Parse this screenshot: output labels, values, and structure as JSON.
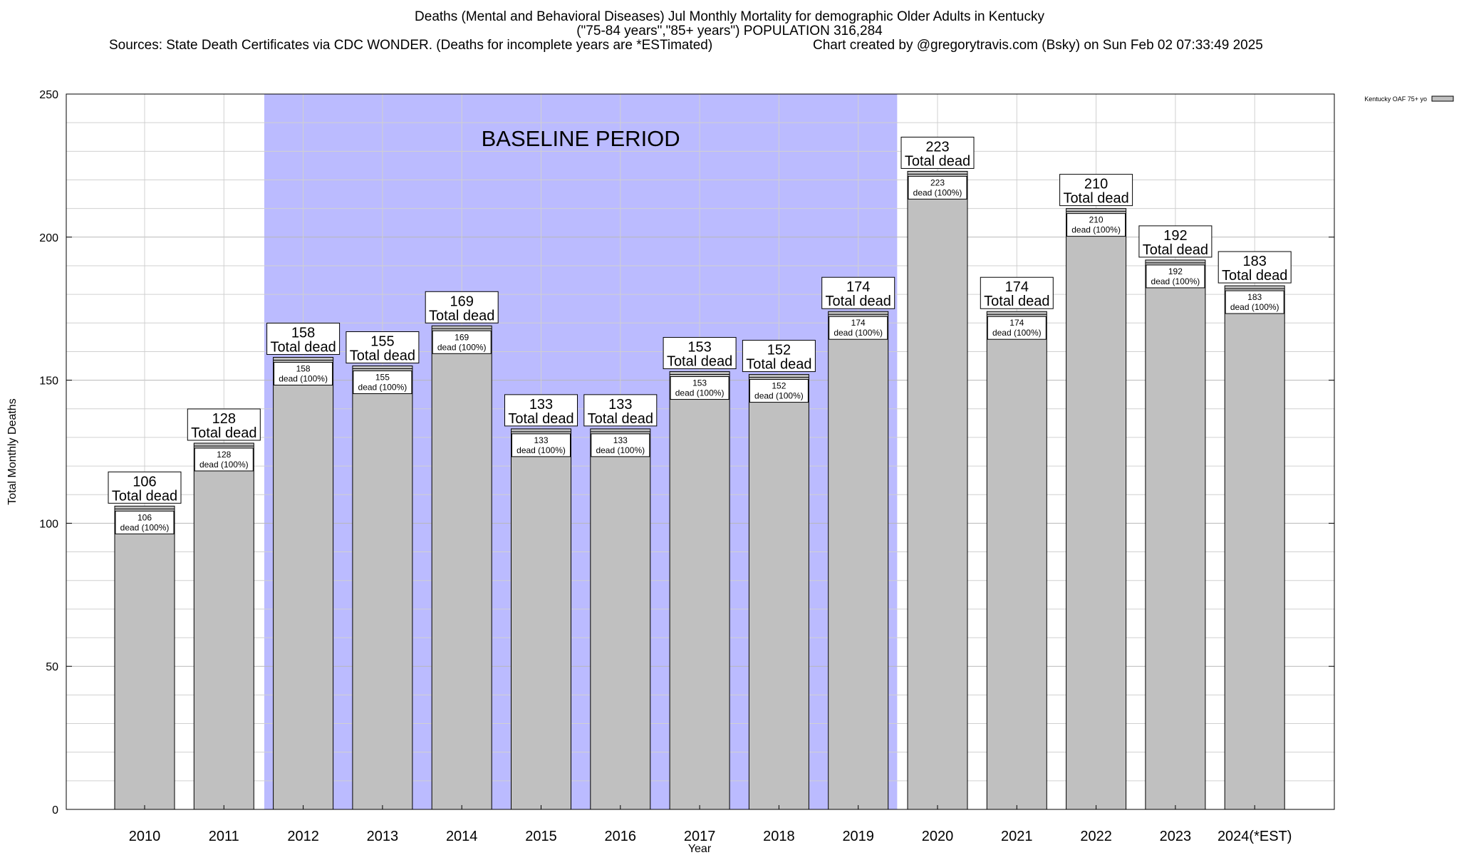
{
  "header": {
    "title": "Deaths (Mental and Behavioral Diseases) Jul Monthly Mortality for demographic Older Adults in Kentucky",
    "subtitle": "(\"75-84 years\",\"85+ years\") POPULATION 316,284",
    "sources": "Sources: State Death Certificates via CDC WONDER. (Deaths for incomplete years are *ESTimated)",
    "credit": "Chart created by @gregorytravis.com (Bsky) on Sun Feb 02 07:33:49 2025"
  },
  "chart_data": {
    "type": "bar",
    "title": "Deaths (Mental and Behavioral Diseases) Jul Monthly Mortality for demographic Older Adults in Kentucky",
    "xlabel": "Year",
    "ylabel": "Total Monthly Deaths",
    "ylim": [
      0,
      250
    ],
    "yticks": [
      0,
      50,
      100,
      150,
      200,
      250
    ],
    "grid": true,
    "legend_position": "top-right",
    "categories": [
      "2010",
      "2011",
      "2012",
      "2013",
      "2014",
      "2015",
      "2016",
      "2017",
      "2018",
      "2019",
      "2020",
      "2021",
      "2022",
      "2023",
      "2024(*EST)"
    ],
    "series": [
      {
        "name": "Kentucky OAF 75+ yo",
        "values": [
          106,
          128,
          158,
          155,
          169,
          133,
          133,
          153,
          152,
          174,
          223,
          174,
          210,
          192,
          183
        ],
        "color": "#c0c0c0"
      }
    ],
    "label_total_text": "Total dead",
    "label_inner_text": "dead (100%)",
    "baseline": {
      "label": "BASELINE PERIOD",
      "start_year": "2012",
      "end_year": "2019",
      "color": "#bbbbff"
    }
  }
}
